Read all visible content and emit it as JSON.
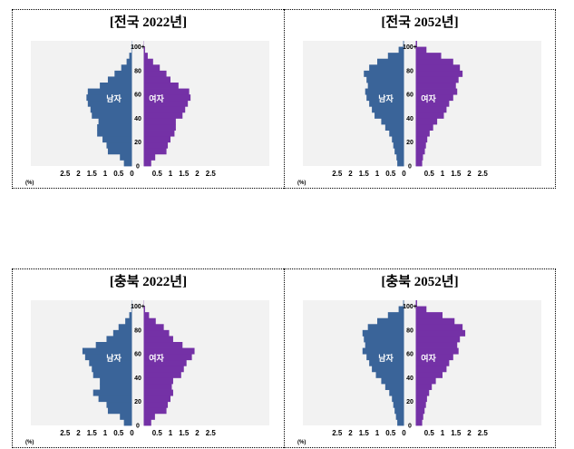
{
  "colors": {
    "male": "#3A6499",
    "female": "#7431A6",
    "plot_bg": "#F2F2F2"
  },
  "unit_label": "(%)",
  "chart_data": [
    {
      "type": "bar",
      "orientation": "horizontal-pyramid",
      "title": "[전국 2022년]",
      "male_label": "남자",
      "female_label": "여자",
      "x_ticks": [
        "2.5",
        "2",
        "1.5",
        "1",
        "0.5",
        "0",
        "0.5",
        "1",
        "1.5",
        "2",
        "2.5"
      ],
      "y_ticks": [
        "0",
        "20",
        "40",
        "60",
        "80",
        "100+"
      ],
      "ages": [
        0,
        5,
        10,
        15,
        20,
        25,
        30,
        35,
        40,
        45,
        50,
        55,
        60,
        65,
        70,
        75,
        80,
        85,
        90,
        95,
        100
      ],
      "male": [
        0.3,
        0.45,
        0.9,
        0.95,
        1.1,
        1.3,
        1.3,
        1.25,
        1.5,
        1.55,
        1.65,
        1.7,
        1.65,
        1.2,
        0.9,
        0.65,
        0.4,
        0.2,
        0.1,
        0.02,
        0.01
      ],
      "female": [
        0.28,
        0.43,
        0.85,
        0.9,
        1.0,
        1.15,
        1.2,
        1.2,
        1.45,
        1.55,
        1.65,
        1.75,
        1.7,
        1.3,
        1.0,
        0.85,
        0.6,
        0.35,
        0.15,
        0.05,
        0.01
      ]
    },
    {
      "type": "bar",
      "orientation": "horizontal-pyramid",
      "title": "[전국 2052년]",
      "male_label": "남자",
      "female_label": "여자",
      "x_ticks": [
        "2.5",
        "2",
        "1.5",
        "1",
        "0.5",
        "0",
        "0.5",
        "1",
        "1.5",
        "2",
        "2.5"
      ],
      "y_ticks": [
        "0",
        "20",
        "40",
        "60",
        "80",
        "100+"
      ],
      "ages": [
        0,
        5,
        10,
        15,
        20,
        25,
        30,
        35,
        40,
        45,
        50,
        55,
        60,
        65,
        70,
        75,
        80,
        85,
        90,
        95,
        100
      ],
      "male": [
        0.25,
        0.28,
        0.35,
        0.4,
        0.45,
        0.55,
        0.7,
        0.85,
        1.1,
        1.2,
        1.3,
        1.4,
        1.45,
        1.35,
        1.4,
        1.5,
        1.3,
        1.0,
        0.6,
        0.2,
        0.03
      ],
      "female": [
        0.24,
        0.27,
        0.34,
        0.38,
        0.43,
        0.52,
        0.65,
        0.8,
        1.05,
        1.15,
        1.25,
        1.4,
        1.55,
        1.5,
        1.6,
        1.75,
        1.65,
        1.4,
        0.95,
        0.4,
        0.05
      ]
    },
    {
      "type": "bar",
      "orientation": "horizontal-pyramid",
      "title": "[충북 2022년]",
      "male_label": "남자",
      "female_label": "여자",
      "x_ticks": [
        "2.5",
        "2",
        "1.5",
        "1",
        "0.5",
        "0",
        "0.5",
        "1",
        "1.5",
        "2",
        "2.5"
      ],
      "y_ticks": [
        "0",
        "20",
        "40",
        "60",
        "80",
        "100+"
      ],
      "ages": [
        0,
        5,
        10,
        15,
        20,
        25,
        30,
        35,
        40,
        45,
        50,
        55,
        60,
        65,
        70,
        75,
        80,
        85,
        90,
        95,
        100
      ],
      "male": [
        0.3,
        0.45,
        0.9,
        0.95,
        1.25,
        1.45,
        1.2,
        1.2,
        1.45,
        1.5,
        1.6,
        1.75,
        1.85,
        1.35,
        0.95,
        0.7,
        0.5,
        0.25,
        0.1,
        0.02,
        0.01
      ],
      "female": [
        0.28,
        0.42,
        0.85,
        0.9,
        1.0,
        1.1,
        1.05,
        1.1,
        1.4,
        1.5,
        1.6,
        1.8,
        1.9,
        1.45,
        1.1,
        0.95,
        0.75,
        0.45,
        0.2,
        0.05,
        0.01
      ]
    },
    {
      "type": "bar",
      "orientation": "horizontal-pyramid",
      "title": "[충북 2052년]",
      "male_label": "남자",
      "female_label": "여자",
      "x_ticks": [
        "2.5",
        "2",
        "1.5",
        "1",
        "0.5",
        "0",
        "0.5",
        "1",
        "1.5",
        "2",
        "2.5"
      ],
      "y_ticks": [
        "0",
        "20",
        "40",
        "60",
        "80",
        "100+"
      ],
      "ages": [
        0,
        5,
        10,
        15,
        20,
        25,
        30,
        35,
        40,
        45,
        50,
        55,
        60,
        65,
        70,
        75,
        80,
        85,
        90,
        95,
        100
      ],
      "male": [
        0.25,
        0.3,
        0.35,
        0.4,
        0.45,
        0.55,
        0.7,
        0.85,
        1.05,
        1.2,
        1.3,
        1.4,
        1.55,
        1.45,
        1.5,
        1.55,
        1.35,
        1.0,
        0.6,
        0.2,
        0.03
      ],
      "female": [
        0.24,
        0.28,
        0.33,
        0.38,
        0.42,
        0.5,
        0.6,
        0.75,
        1.0,
        1.15,
        1.25,
        1.4,
        1.6,
        1.55,
        1.65,
        1.85,
        1.75,
        1.45,
        1.0,
        0.4,
        0.05
      ]
    }
  ]
}
